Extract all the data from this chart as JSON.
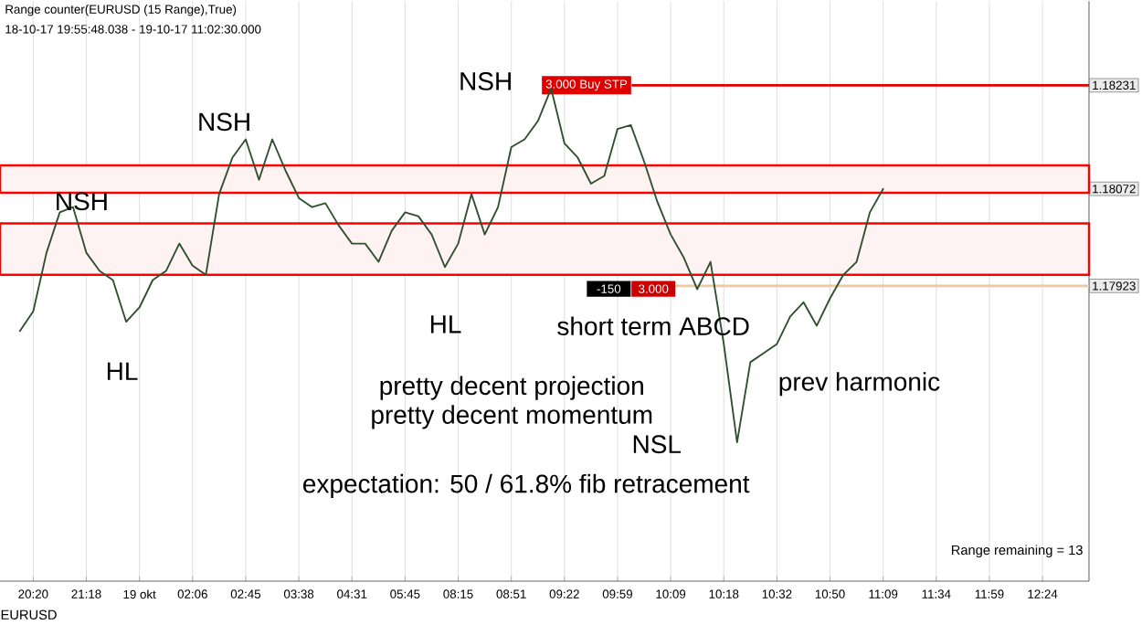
{
  "chart_data": {
    "type": "line",
    "title": "Range counter(EURUSD (15 Range),True)",
    "subtitle": "18-10-17 19:55:48.038 - 19-10-17 11:02:30.000",
    "categories": [
      null,
      null,
      "20:20",
      null,
      null,
      null,
      "21:18",
      null,
      null,
      null,
      "19 okt",
      null,
      null,
      null,
      "02:06",
      null,
      null,
      null,
      "02:45",
      null,
      null,
      null,
      "03:38",
      null,
      null,
      null,
      "04:31",
      null,
      null,
      null,
      "05:45",
      null,
      null,
      null,
      "08:15",
      null,
      null,
      null,
      "08:51",
      null,
      null,
      null,
      "09:22",
      null,
      null,
      null,
      "09:59",
      null,
      null,
      null,
      "10:09",
      null,
      null,
      null,
      "10:18",
      null,
      null,
      null,
      "10:32",
      null,
      null,
      null,
      "10:50",
      null,
      null,
      null,
      "11:09",
      null,
      null,
      null,
      "11:34",
      null,
      null,
      null,
      "11:59",
      null,
      null,
      null,
      "12:24",
      null,
      null,
      null
    ],
    "series": [
      {
        "color": "#2f4f2f",
        "values": [
          null,
          1.17854,
          1.17884,
          1.17974,
          1.18036,
          1.18044,
          1.17974,
          1.17946,
          1.17932,
          1.17868,
          1.1789,
          1.17932,
          1.17946,
          1.17988,
          1.17954,
          1.1794,
          1.18064,
          1.1812,
          1.18148,
          1.18086,
          1.18148,
          1.181,
          1.18058,
          1.18044,
          1.1805,
          1.18016,
          1.17988,
          1.17988,
          1.1796,
          1.18008,
          1.18036,
          1.1803,
          1.18002,
          1.17952,
          1.17988,
          1.18064,
          1.18002,
          1.18044,
          1.18136,
          1.18148,
          1.18176,
          1.18226,
          1.18142,
          1.1812,
          1.1808,
          1.18092,
          1.18164,
          1.1817,
          1.18114,
          1.18052,
          1.18002,
          1.17966,
          1.17918,
          1.1796,
          1.17834,
          1.17683,
          1.17806,
          1.1782,
          1.17834,
          1.17876,
          1.17898,
          1.17862,
          1.17904,
          1.1794,
          1.1796,
          1.18036,
          1.18072,
          null,
          null,
          null,
          null,
          null,
          null,
          null,
          null,
          null,
          null,
          null,
          null,
          null,
          null,
          null
        ]
      }
    ],
    "ylim": [
      1.1747,
      1.1836
    ],
    "yticks": [
      1.18231,
      1.18072,
      1.17923
    ],
    "grid": "x",
    "ref_lines": [
      {
        "axis": "y",
        "value": 1.18231,
        "label": "3.000 Buy STP",
        "color": "#e00000"
      },
      {
        "axis": "y",
        "value": 1.17923,
        "color": "#f0c8a0"
      }
    ],
    "bands": [
      {
        "axis": "y",
        "from": 1.1794,
        "to": 1.18019,
        "color": "#ff0000"
      },
      {
        "axis": "y",
        "from": 1.18066,
        "to": 1.18108,
        "color": "#ff0000"
      }
    ],
    "annotations": [
      "NSH",
      "NSH",
      "NSH",
      "HL",
      "HL",
      "NSL",
      "short term ABCD",
      "prev harmonic",
      "pretty decent projection",
      "pretty decent momentum",
      "expectation: 50 / 61.8% fib retracement",
      "Range remaining = 13",
      "EURUSD",
      "-150",
      "3.000"
    ]
  }
}
